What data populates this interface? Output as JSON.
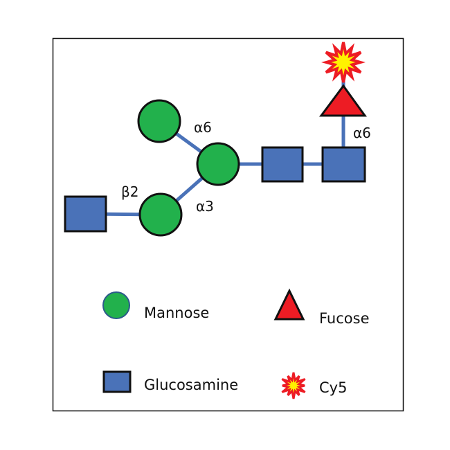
{
  "colors": {
    "mannose": "#22b14c",
    "glucosamine": "#4a72b8",
    "fucose": "#ed1c24",
    "bond": "#4a72b8",
    "cy5_outer": "#ed1c24",
    "cy5_inner": "#fff200",
    "outline": "#111111"
  },
  "linkages": {
    "mannose_top": "α6",
    "mannose_bottom": "α3",
    "glucosamine_terminal": "β2",
    "fucose": "α6"
  },
  "legend": {
    "mannose": "Mannose",
    "fucose": "Fucose",
    "glucosamine": "Glucosamine",
    "cy5": "Cy5"
  }
}
